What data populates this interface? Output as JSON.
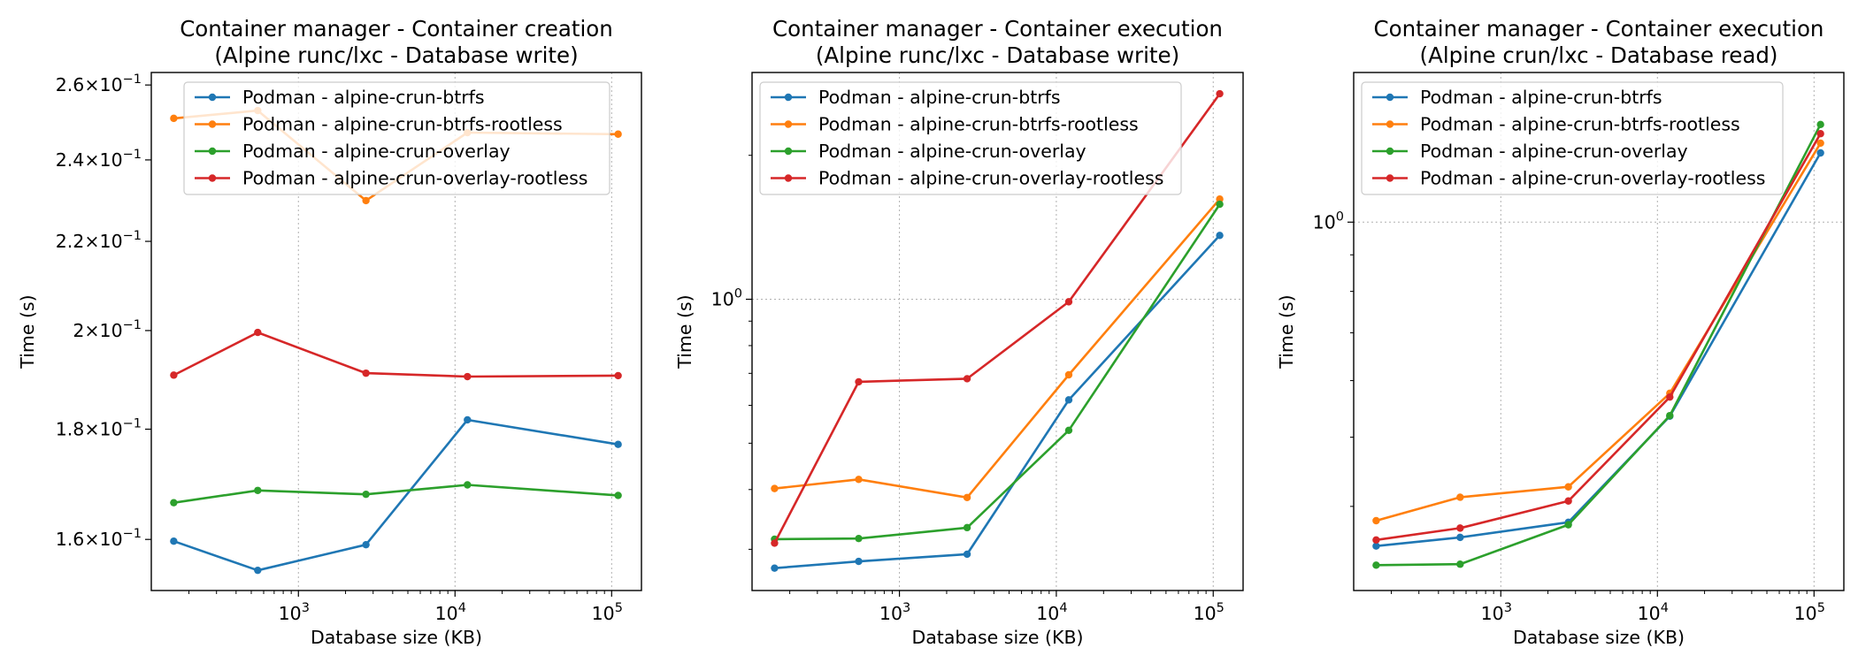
{
  "colors": {
    "blue": "#1f77b4",
    "orange": "#ff7f0e",
    "green": "#2ca02c",
    "red": "#d62728",
    "grid": "#b0b0b0"
  },
  "chart_data": [
    {
      "type": "line",
      "title": "Container manager - Container creation",
      "subtitle": "(Alpine runc/lxc - Database write)",
      "xlabel": "Database size (KB)",
      "ylabel": "Time (s)",
      "xscale": "log",
      "yscale": "log",
      "xlim": [
        115,
        155000
      ],
      "ylim": [
        0.1515,
        0.2635
      ],
      "x_ticks": [
        {
          "value": 1000,
          "base": "10",
          "exp": "3"
        },
        {
          "value": 10000,
          "base": "10",
          "exp": "4"
        },
        {
          "value": 100000,
          "base": "10",
          "exp": "5"
        }
      ],
      "y_ticks": [
        {
          "value": 0.16,
          "mant": "1.6",
          "base": "×10",
          "exp": "−1"
        },
        {
          "value": 0.18,
          "mant": "1.8",
          "base": "×10",
          "exp": "−1"
        },
        {
          "value": 0.2,
          "mant": "2",
          "base": "×10",
          "exp": "−1"
        },
        {
          "value": 0.22,
          "mant": "2.2",
          "base": "×10",
          "exp": "−1"
        },
        {
          "value": 0.24,
          "mant": "2.4",
          "base": "×10",
          "exp": "−1"
        },
        {
          "value": 0.26,
          "mant": "2.6",
          "base": "×10",
          "exp": "−1"
        }
      ],
      "grid": "x-major-dotted",
      "legend_position": "upper-center",
      "x": [
        160,
        550,
        2700,
        12000,
        110000
      ],
      "series": [
        {
          "name": "Podman - alpine-crun-btrfs",
          "color": "#1f77b4",
          "values": [
            0.1597,
            0.1548,
            0.1591,
            0.1818,
            0.1771
          ]
        },
        {
          "name": "Podman - alpine-crun-btrfs-rootless",
          "color": "#ff7f0e",
          "values": [
            0.2509,
            0.253,
            0.2298,
            0.2471,
            0.2467
          ]
        },
        {
          "name": "Podman - alpine-crun-overlay",
          "color": "#2ca02c",
          "values": [
            0.1664,
            0.1686,
            0.1679,
            0.1696,
            0.1677
          ]
        },
        {
          "name": "Podman - alpine-crun-overlay-rootless",
          "color": "#d62728",
          "values": [
            0.1907,
            0.1996,
            0.1911,
            0.1904,
            0.1906
          ]
        }
      ]
    },
    {
      "type": "line",
      "title": "Container manager - Container execution",
      "subtitle": "(Alpine runc/lxc - Database write)",
      "xlabel": "Database size (KB)",
      "ylabel": "Time (s)",
      "xscale": "log",
      "yscale": "log",
      "xlim": [
        115,
        155000
      ],
      "ylim": [
        0.246,
        2.98
      ],
      "x_ticks": [
        {
          "value": 1000,
          "base": "10",
          "exp": "3"
        },
        {
          "value": 10000,
          "base": "10",
          "exp": "4"
        },
        {
          "value": 100000,
          "base": "10",
          "exp": "5"
        }
      ],
      "y_ticks": [
        {
          "value": 1.0,
          "mant": "",
          "base": "10",
          "exp": "0"
        }
      ],
      "grid": "major-dotted",
      "legend_position": "upper-left",
      "x": [
        160,
        550,
        2700,
        12000,
        110000
      ],
      "series": [
        {
          "name": "Podman - alpine-crun-btrfs",
          "color": "#1f77b4",
          "values": [
            0.274,
            0.283,
            0.293,
            0.616,
            1.36
          ]
        },
        {
          "name": "Podman - alpine-crun-btrfs-rootless",
          "color": "#ff7f0e",
          "values": [
            0.402,
            0.42,
            0.385,
            0.695,
            1.62
          ]
        },
        {
          "name": "Podman - alpine-crun-overlay",
          "color": "#2ca02c",
          "values": [
            0.315,
            0.316,
            0.333,
            0.532,
            1.58
          ]
        },
        {
          "name": "Podman - alpine-crun-overlay-rootless",
          "color": "#d62728",
          "values": [
            0.309,
            0.672,
            0.682,
            0.988,
            2.69
          ]
        }
      ]
    },
    {
      "type": "line",
      "title": "Container manager - Container execution",
      "subtitle": "(Alpine crun/lxc - Database read)",
      "xlabel": "Database size (KB)",
      "ylabel": "Time (s)",
      "xscale": "log",
      "yscale": "log",
      "xlim": [
        115,
        155000
      ],
      "ylim": [
        0.305,
        1.62
      ],
      "x_ticks": [
        {
          "value": 1000,
          "base": "10",
          "exp": "3"
        },
        {
          "value": 10000,
          "base": "10",
          "exp": "4"
        },
        {
          "value": 100000,
          "base": "10",
          "exp": "5"
        }
      ],
      "y_ticks": [
        {
          "value": 1.0,
          "mant": "",
          "base": "10",
          "exp": "0"
        }
      ],
      "grid": "major-dotted",
      "legend_position": "upper-left",
      "x": [
        160,
        550,
        2700,
        12000,
        110000
      ],
      "series": [
        {
          "name": "Podman - alpine-crun-btrfs",
          "color": "#1f77b4",
          "values": [
            0.352,
            0.362,
            0.38,
            0.535,
            1.25
          ]
        },
        {
          "name": "Podman - alpine-crun-btrfs-rootless",
          "color": "#ff7f0e",
          "values": [
            0.382,
            0.412,
            0.426,
            0.576,
            1.29
          ]
        },
        {
          "name": "Podman - alpine-crun-overlay",
          "color": "#2ca02c",
          "values": [
            0.331,
            0.332,
            0.377,
            0.536,
            1.37
          ]
        },
        {
          "name": "Podman - alpine-crun-overlay-rootless",
          "color": "#d62728",
          "values": [
            0.359,
            0.373,
            0.407,
            0.569,
            1.33
          ]
        }
      ]
    }
  ]
}
